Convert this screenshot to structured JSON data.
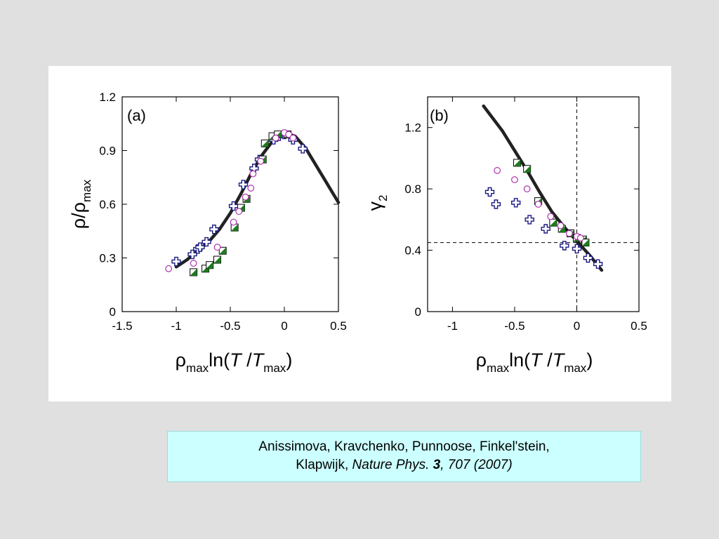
{
  "citation": {
    "line1": "Anissimova, Kravchenko, Punnoose, Finkel'stein,",
    "authors_end": "Klapwijk, ",
    "journal": "Nature Phys. ",
    "volume": "3",
    "pages": ", 707 (2007)"
  },
  "chart_data": [
    {
      "type": "scatter",
      "panel_label": "(a)",
      "xlabel": {
        "base": "ρ",
        "sub": "max",
        "mid": "ln(",
        "var": "T",
        "slash": " /",
        "var2": "T",
        "sub2": "max",
        "close": ")"
      },
      "ylabel": {
        "base": "ρ/ρ",
        "sub": "max"
      },
      "xlim": [
        -1.5,
        0.5
      ],
      "ylim": [
        0,
        1.2
      ],
      "xticks": [
        "-1.5",
        "-1",
        "-0.5",
        "0",
        "0.5"
      ],
      "xtick_values": [
        -1.5,
        -1,
        -0.5,
        0,
        0.5
      ],
      "yticks": [
        "0",
        "0.3",
        "0.6",
        "0.9",
        "1.2"
      ],
      "ytick_values": [
        0,
        0.3,
        0.6,
        0.9,
        1.2
      ],
      "grid": false,
      "curve": {
        "x": [
          -1.0,
          -0.9,
          -0.8,
          -0.7,
          -0.6,
          -0.5,
          -0.4,
          -0.3,
          -0.2,
          -0.1,
          0.0,
          0.1,
          0.2,
          0.3,
          0.4,
          0.5
        ],
        "y": [
          0.25,
          0.29,
          0.34,
          0.39,
          0.46,
          0.55,
          0.66,
          0.78,
          0.88,
          0.96,
          1.0,
          0.98,
          0.91,
          0.81,
          0.71,
          0.61
        ]
      },
      "series": [
        {
          "marker": "open-cross",
          "color": "#1a1a80",
          "points": [
            [
              -1.0,
              0.28
            ],
            [
              -0.85,
              0.32
            ],
            [
              -0.8,
              0.35
            ],
            [
              -0.78,
              0.36
            ],
            [
              -0.72,
              0.39
            ],
            [
              -0.65,
              0.46
            ],
            [
              -0.47,
              0.59
            ],
            [
              -0.38,
              0.71
            ],
            [
              -0.28,
              0.8
            ],
            [
              -0.23,
              0.85
            ],
            [
              -0.1,
              0.96
            ],
            [
              -0.05,
              0.98
            ],
            [
              0.0,
              0.99
            ],
            [
              0.08,
              0.96
            ],
            [
              0.17,
              0.91
            ]
          ]
        },
        {
          "marker": "half-filled-square",
          "color": "#1f7a1f",
          "points": [
            [
              -0.84,
              0.22
            ],
            [
              -0.73,
              0.24
            ],
            [
              -0.69,
              0.26
            ],
            [
              -0.62,
              0.29
            ],
            [
              -0.57,
              0.34
            ],
            [
              -0.46,
              0.47
            ],
            [
              -0.4,
              0.58
            ],
            [
              -0.35,
              0.63
            ],
            [
              -0.2,
              0.85
            ],
            [
              -0.18,
              0.94
            ],
            [
              -0.11,
              0.98
            ],
            [
              -0.06,
              0.99
            ],
            [
              0.03,
              0.99
            ]
          ]
        },
        {
          "marker": "open-circle",
          "color": "#b030b0",
          "points": [
            [
              -1.07,
              0.24
            ],
            [
              -0.84,
              0.27
            ],
            [
              -0.62,
              0.36
            ],
            [
              -0.47,
              0.5
            ],
            [
              -0.42,
              0.56
            ],
            [
              -0.36,
              0.64
            ],
            [
              -0.31,
              0.69
            ],
            [
              -0.29,
              0.77
            ],
            [
              -0.22,
              0.84
            ],
            [
              -0.08,
              0.97
            ],
            [
              0.0,
              1.0
            ],
            [
              0.04,
              0.99
            ],
            [
              0.08,
              0.97
            ]
          ]
        }
      ]
    },
    {
      "type": "scatter",
      "panel_label": "(b)",
      "xlabel": {
        "base": "ρ",
        "sub": "max",
        "mid": "ln(",
        "var": "T",
        "slash": " /",
        "var2": "T",
        "sub2": "max",
        "close": ")"
      },
      "ylabel": {
        "base": "γ",
        "sub": "2"
      },
      "xlim": [
        -1.2,
        0.5
      ],
      "ylim": [
        0,
        1.4
      ],
      "xticks": [
        "-1",
        "-0.5",
        "0",
        "0.5"
      ],
      "xtick_values": [
        -1,
        -0.5,
        0,
        0.5
      ],
      "yticks": [
        "0",
        "0.4",
        "0.8",
        "1.2"
      ],
      "ytick_values": [
        0,
        0.4,
        0.8,
        1.2
      ],
      "grid": false,
      "reference_lines": {
        "vertical_x": 0,
        "horizontal_y": 0.45
      },
      "curve": {
        "x": [
          -0.75,
          -0.6,
          -0.5,
          -0.4,
          -0.3,
          -0.2,
          -0.1,
          0.0,
          0.1,
          0.2
        ],
        "y": [
          1.34,
          1.18,
          1.05,
          0.92,
          0.78,
          0.65,
          0.55,
          0.46,
          0.37,
          0.27
        ]
      },
      "series": [
        {
          "marker": "open-cross",
          "color": "#1a1a80",
          "points": [
            [
              -0.7,
              0.78
            ],
            [
              -0.65,
              0.7
            ],
            [
              -0.49,
              0.71
            ],
            [
              -0.38,
              0.6
            ],
            [
              -0.25,
              0.54
            ],
            [
              -0.1,
              0.43
            ],
            [
              0.0,
              0.41
            ],
            [
              0.09,
              0.35
            ],
            [
              0.17,
              0.31
            ]
          ]
        },
        {
          "marker": "half-filled-square",
          "color": "#1f7a1f",
          "points": [
            [
              -0.48,
              0.97
            ],
            [
              -0.4,
              0.93
            ],
            [
              -0.31,
              0.72
            ],
            [
              -0.19,
              0.58
            ],
            [
              -0.12,
              0.54
            ],
            [
              -0.05,
              0.51
            ],
            [
              0.0,
              0.48
            ],
            [
              0.05,
              0.47
            ],
            [
              0.07,
              0.45
            ]
          ]
        },
        {
          "marker": "open-circle",
          "color": "#b030b0",
          "points": [
            [
              -0.64,
              0.92
            ],
            [
              -0.5,
              0.86
            ],
            [
              -0.4,
              0.8
            ],
            [
              -0.31,
              0.7
            ],
            [
              -0.21,
              0.62
            ],
            [
              -0.13,
              0.56
            ],
            [
              -0.06,
              0.51
            ],
            [
              0.0,
              0.49
            ],
            [
              0.03,
              0.48
            ]
          ]
        }
      ]
    }
  ]
}
